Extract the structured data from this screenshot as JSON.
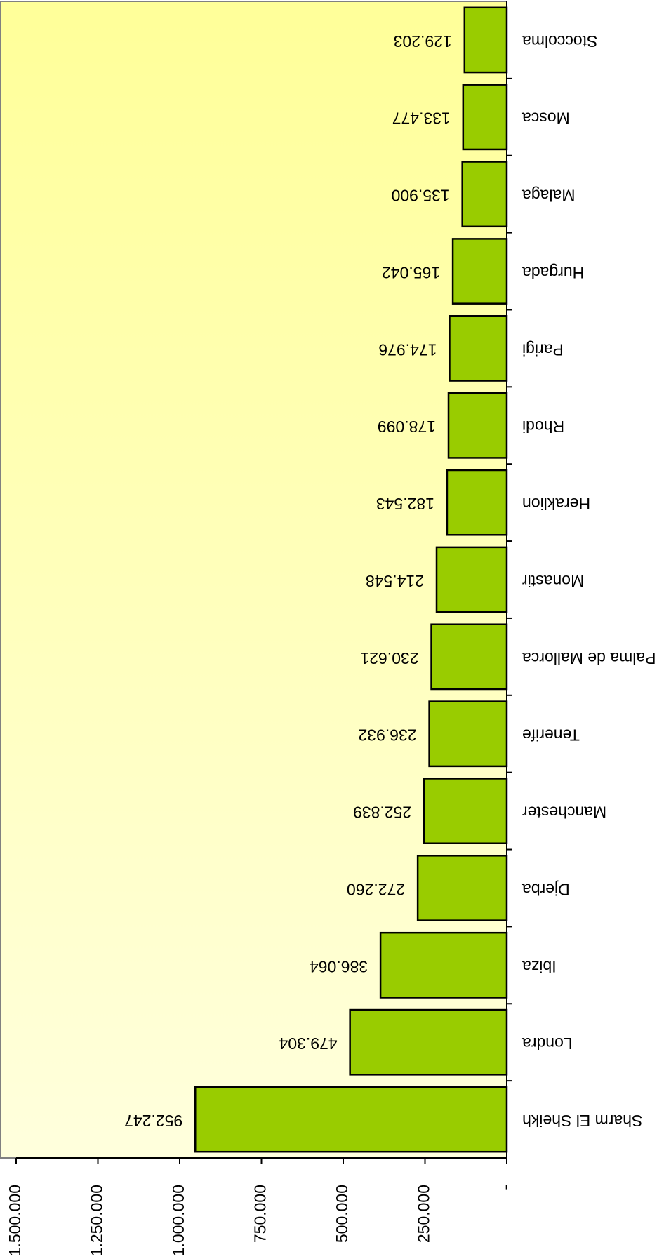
{
  "chart_data": {
    "type": "bar",
    "categories": [
      "Sharm El Sheikh",
      "Londra",
      "Ibiza",
      "Djerba",
      "Manchester",
      "Tenerife",
      "Palma de Mallorca",
      "Monastir",
      "Heraklion",
      "Rhodi",
      "Parigi",
      "Hurgada",
      "Malaga",
      "Mosca",
      "Stoccolma"
    ],
    "values": [
      952247,
      479304,
      386064,
      272260,
      252839,
      236932,
      230621,
      214548,
      182543,
      178099,
      174976,
      165042,
      135900,
      133477,
      129203
    ],
    "value_labels": [
      "952.247",
      "479.304",
      "386.064",
      "272.260",
      "252.839",
      "236.932",
      "230.621",
      "214.548",
      "182.543",
      "178.099",
      "174.976",
      "165.042",
      "135.900",
      "133.477",
      "129.203"
    ],
    "color": "#99cc00",
    "ylim": [
      0,
      1500000
    ],
    "yticks": [
      {
        "value": 0,
        "label": "-"
      },
      {
        "value": 250000,
        "label": "250.000"
      },
      {
        "value": 500000,
        "label": "500.000"
      },
      {
        "value": 750000,
        "label": "750.000"
      },
      {
        "value": 1000000,
        "label": "1.000.000"
      },
      {
        "value": 1250000,
        "label": "1.250.000"
      },
      {
        "value": 1500000,
        "label": "1.500.000"
      }
    ],
    "grid": false
  }
}
